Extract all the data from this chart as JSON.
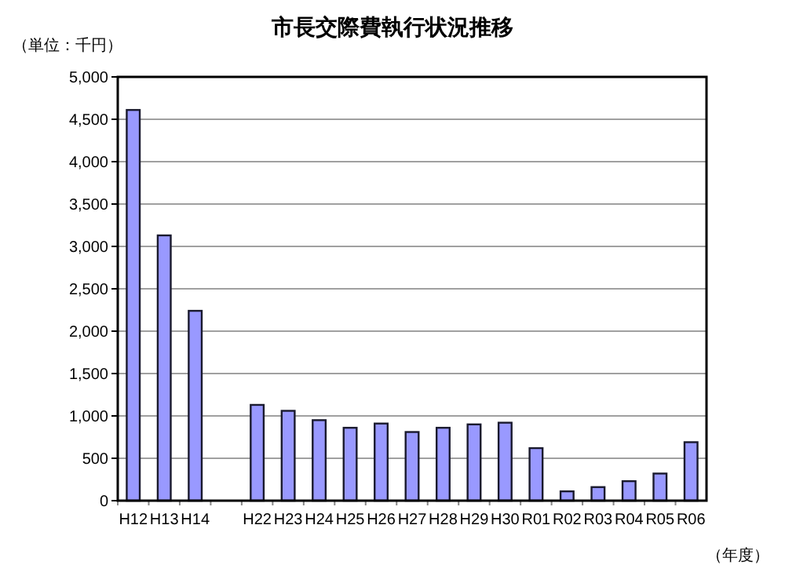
{
  "chart_data": {
    "type": "bar",
    "title": "市長交際費執行状況推移",
    "ylabel": "（単位：千円）",
    "xlabel": "（年度）",
    "categories": [
      "H12",
      "H13",
      "H14",
      null,
      "H22",
      "H23",
      "H24",
      "H25",
      "H26",
      "H27",
      "H28",
      "H29",
      "H30",
      "R01",
      "R02",
      "R03",
      "R04",
      "R05",
      "R06"
    ],
    "values": [
      4610,
      3130,
      2240,
      null,
      1130,
      1060,
      950,
      860,
      910,
      810,
      860,
      900,
      920,
      620,
      110,
      160,
      230,
      320,
      690
    ],
    "color": "#9999ff",
    "ylim": [
      0,
      5000
    ],
    "yticks": [
      {
        "value": 0,
        "label": "0"
      },
      {
        "value": 500,
        "label": "500"
      },
      {
        "value": 1000,
        "label": "1,000"
      },
      {
        "value": 1500,
        "label": "1,500"
      },
      {
        "value": 2000,
        "label": "2,000"
      },
      {
        "value": 2500,
        "label": "2,500"
      },
      {
        "value": 3000,
        "label": "3,000"
      },
      {
        "value": 3500,
        "label": "3,500"
      },
      {
        "value": 4000,
        "label": "4,000"
      },
      {
        "value": 4500,
        "label": "4,500"
      },
      {
        "value": 5000,
        "label": "5,000"
      }
    ],
    "grid": "y"
  }
}
